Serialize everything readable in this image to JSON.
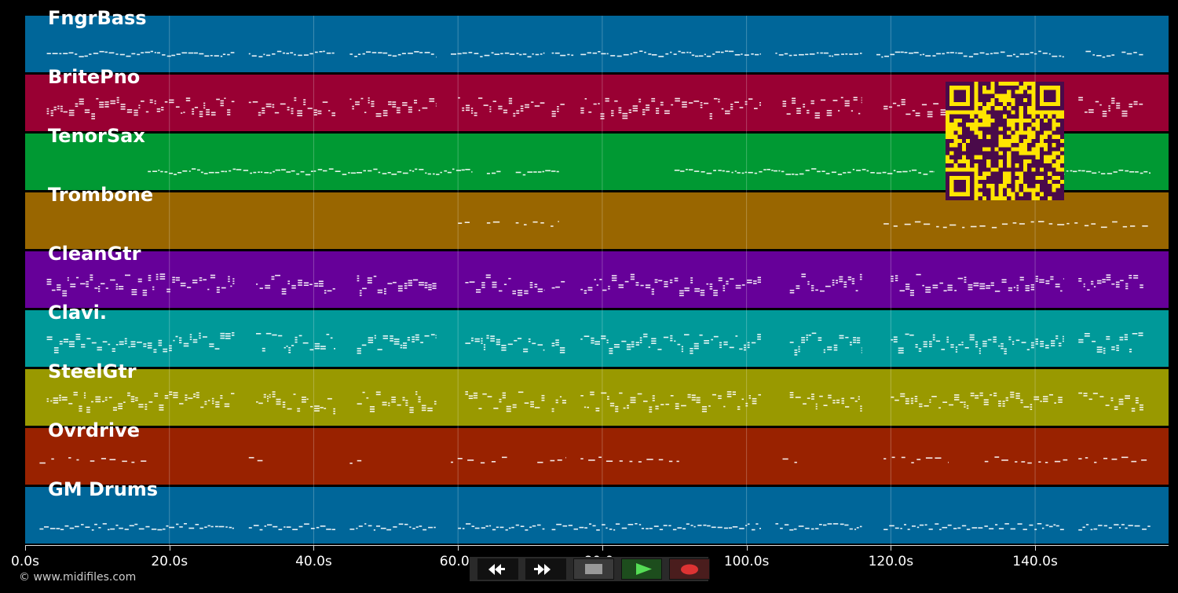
{
  "timeline": {
    "ticks": [
      "0.0s",
      "20.0s",
      "40.0s",
      "60.0s",
      "80.0s",
      "100.0s",
      "120.0s",
      "140.0s"
    ],
    "max_seconds": 158.5
  },
  "tracks": [
    {
      "name": "FngrBass",
      "color": "#006699",
      "pattern": "melody",
      "segments": [
        [
          3,
          29
        ],
        [
          31,
          43
        ],
        [
          45,
          57
        ],
        [
          59,
          72
        ],
        [
          73,
          76
        ],
        [
          77,
          102
        ],
        [
          104,
          116
        ],
        [
          118,
          144
        ],
        [
          147,
          151
        ],
        [
          152,
          155
        ]
      ]
    },
    {
      "name": "BritePno",
      "color": "#990033",
      "pattern": "chords",
      "segments": [
        [
          3,
          29
        ],
        [
          31,
          43
        ],
        [
          45,
          57
        ],
        [
          60,
          72
        ],
        [
          73,
          75
        ],
        [
          77,
          102
        ],
        [
          105,
          116
        ],
        [
          119,
          144
        ],
        [
          146,
          155
        ]
      ]
    },
    {
      "name": "TenorSax",
      "color": "#009933",
      "pattern": "melody",
      "segments": [
        [
          17,
          62
        ],
        [
          64,
          66
        ],
        [
          68,
          74
        ],
        [
          90,
          126
        ],
        [
          131,
          156
        ]
      ]
    },
    {
      "name": "Trombone",
      "color": "#996600",
      "pattern": "sparse",
      "segments": [
        [
          60,
          62
        ],
        [
          64,
          66
        ],
        [
          68,
          74
        ],
        [
          119,
          156
        ]
      ]
    },
    {
      "name": "CleanGtr",
      "color": "#660099",
      "pattern": "chords",
      "segments": [
        [
          3,
          29
        ],
        [
          32,
          43
        ],
        [
          46,
          57
        ],
        [
          61,
          72
        ],
        [
          73,
          75
        ],
        [
          77,
          102
        ],
        [
          106,
          116
        ],
        [
          120,
          144
        ],
        [
          146,
          155
        ]
      ]
    },
    {
      "name": "Clavi.",
      "color": "#009999",
      "pattern": "chords",
      "segments": [
        [
          3,
          29
        ],
        [
          32,
          43
        ],
        [
          46,
          57
        ],
        [
          61,
          72
        ],
        [
          73,
          75
        ],
        [
          77,
          102
        ],
        [
          106,
          116
        ],
        [
          120,
          144
        ],
        [
          146,
          155
        ]
      ]
    },
    {
      "name": "SteelGtr",
      "color": "#999900",
      "pattern": "chords",
      "segments": [
        [
          3,
          29
        ],
        [
          32,
          43
        ],
        [
          46,
          57
        ],
        [
          61,
          72
        ],
        [
          73,
          75
        ],
        [
          77,
          102
        ],
        [
          106,
          116
        ],
        [
          120,
          144
        ],
        [
          146,
          155
        ]
      ]
    },
    {
      "name": "Ovrdrive",
      "color": "#992200",
      "pattern": "sparse",
      "segments": [
        [
          2,
          4
        ],
        [
          6,
          8
        ],
        [
          9,
          17
        ],
        [
          31,
          33
        ],
        [
          45,
          47
        ],
        [
          59,
          67
        ],
        [
          71,
          75
        ],
        [
          77,
          91
        ],
        [
          105,
          107
        ],
        [
          119,
          128
        ],
        [
          133,
          145
        ],
        [
          146,
          156
        ]
      ]
    },
    {
      "name": "GM Drums",
      "color": "#006699",
      "pattern": "drums",
      "segments": [
        [
          2,
          29
        ],
        [
          31,
          43
        ],
        [
          45,
          57
        ],
        [
          60,
          72
        ],
        [
          73,
          102
        ],
        [
          104,
          116
        ],
        [
          119,
          144
        ],
        [
          146,
          156
        ]
      ]
    }
  ],
  "copyright": "© www.midifiles.com",
  "controls": {
    "rewind_icon": "rewind-icon",
    "fast_forward_icon": "fast-forward-icon",
    "stop_icon": "stop-icon",
    "play_icon": "play-icon",
    "record_icon": "record-icon",
    "play_color": "#55dd55",
    "record_color": "#dd3333"
  },
  "qr": {
    "fg": "#4a0a4a",
    "bg": "#ffe500"
  }
}
